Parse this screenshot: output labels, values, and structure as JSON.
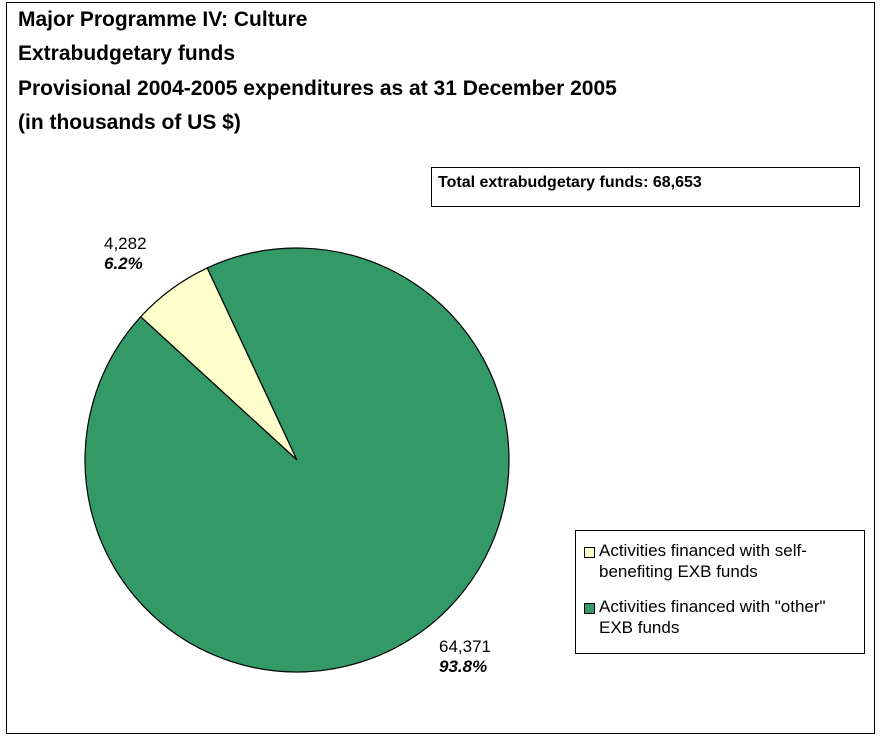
{
  "chart_data": {
    "type": "pie",
    "title_lines": [
      "Major Programme IV: Culture",
      "Extrabudgetary  funds",
      "Provisional 2004-2005 expenditures as at 31 December 2005",
      "(in thousands of US $)"
    ],
    "total_label": "Total extrabudgetary funds: 68,653",
    "slices": [
      {
        "name": "Activities financed with self-benefiting EXB funds",
        "value": 4282,
        "value_label": "4,282",
        "percent_label": "6.2%",
        "color": "#FFFFCC"
      },
      {
        "name": "Activities financed with \"other\" EXB funds",
        "value": 64371,
        "value_label": "64,371",
        "percent_label": "93.8%",
        "color": "#339966"
      }
    ],
    "legend_placement": "bottom-right"
  }
}
